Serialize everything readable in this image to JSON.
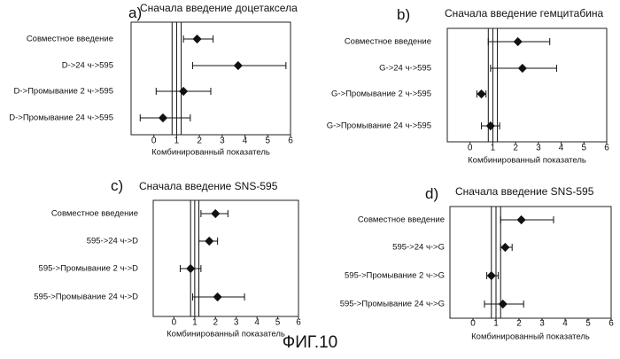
{
  "figure_caption": "ФИГ.10",
  "chart_data": [
    {
      "type": "forest",
      "panel_label": "a)",
      "title": "Сначала введение доцетаксела",
      "xlabel": "Комбинированный показатель",
      "xlim": [
        -1,
        6
      ],
      "xticks": [
        0,
        1,
        2,
        3,
        4,
        5,
        6
      ],
      "reference_band": [
        0.8,
        1.2
      ],
      "rows": [
        {
          "label": "Совместное введение",
          "value": 1.9,
          "ci": [
            1.3,
            2.6
          ]
        },
        {
          "label": "D->24 ч->595",
          "value": 3.7,
          "ci": [
            1.7,
            5.8
          ]
        },
        {
          "label": "D->Промывание 2 ч->595",
          "value": 1.3,
          "ci": [
            0.1,
            2.5
          ]
        },
        {
          "label": "D->Промывание 24 ч->595",
          "value": 0.4,
          "ci": [
            -0.6,
            1.6
          ]
        }
      ]
    },
    {
      "type": "forest",
      "panel_label": "b)",
      "title": "Сначала введение гемцитабина",
      "xlabel": "Комбинированный показатель",
      "xlim": [
        -1,
        6
      ],
      "xticks": [
        0,
        1,
        2,
        3,
        4,
        5,
        6
      ],
      "reference_band": [
        0.8,
        1.2
      ],
      "rows": [
        {
          "label": "Совместное введение",
          "value": 2.1,
          "ci": [
            0.8,
            3.5
          ]
        },
        {
          "label": "G->24 ч->595",
          "value": 2.3,
          "ci": [
            0.9,
            3.8
          ]
        },
        {
          "label": "G->Промывание 2 ч->595",
          "value": 0.5,
          "ci": [
            0.3,
            0.7
          ]
        },
        {
          "label": "G->Промывание 24 ч->595",
          "value": 0.9,
          "ci": [
            0.5,
            1.3
          ]
        }
      ]
    },
    {
      "type": "forest",
      "panel_label": "c)",
      "title": "Сначала введение SNS-595",
      "xlabel": "Комбинированный показатель",
      "xlim": [
        -1,
        6
      ],
      "xticks": [
        0,
        1,
        2,
        3,
        4,
        5,
        6
      ],
      "reference_band": [
        0.8,
        1.2
      ],
      "rows": [
        {
          "label": "Совместное введение",
          "value": 2.0,
          "ci": [
            1.3,
            2.6
          ]
        },
        {
          "label": "595->24 ч->D",
          "value": 1.7,
          "ci": [
            1.2,
            2.1
          ]
        },
        {
          "label": "595->Промывание 2 ч->D",
          "value": 0.8,
          "ci": [
            0.3,
            1.3
          ]
        },
        {
          "label": "595->Промывание 24 ч->D",
          "value": 2.1,
          "ci": [
            0.9,
            3.4
          ]
        }
      ]
    },
    {
      "type": "forest",
      "panel_label": "d)",
      "title": "Сначала введение SNS-595",
      "xlabel": "Комбинированный показатель",
      "xlim": [
        -1,
        6
      ],
      "xticks": [
        0,
        1,
        2,
        3,
        4,
        5,
        6
      ],
      "reference_band": [
        0.8,
        1.2
      ],
      "rows": [
        {
          "label": "Совместное введение",
          "value": 2.1,
          "ci": [
            1.2,
            3.5
          ]
        },
        {
          "label": "595->24 ч->G",
          "value": 1.4,
          "ci": [
            1.2,
            1.7
          ]
        },
        {
          "label": "595->Промывание 2 ч->G",
          "value": 0.8,
          "ci": [
            0.6,
            1.1
          ]
        },
        {
          "label": "595->Промывание 24 ч->G",
          "value": 1.3,
          "ci": [
            0.5,
            2.2
          ]
        }
      ]
    }
  ]
}
